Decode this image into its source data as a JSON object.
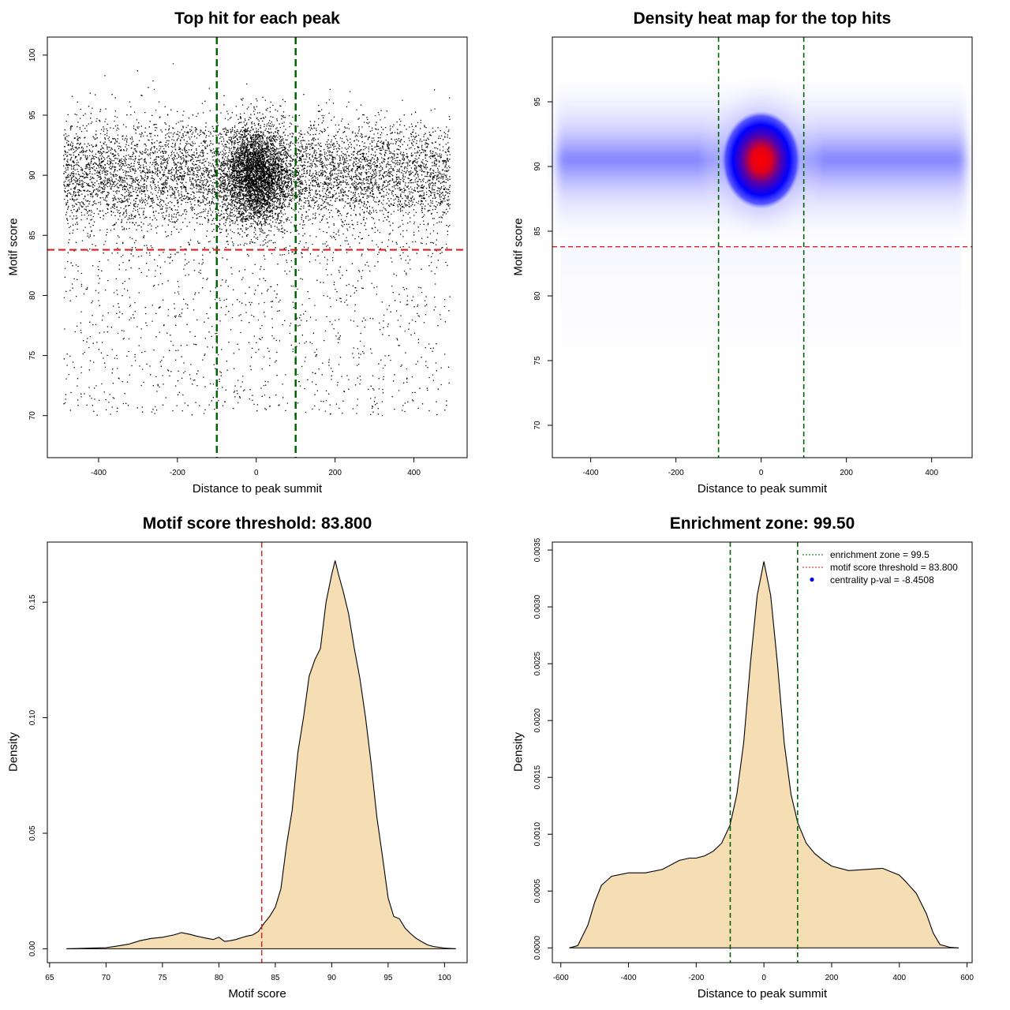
{
  "chart_data": [
    {
      "type": "scatter",
      "title": "Top hit for each peak",
      "xlabel": "Distance to peak summit",
      "ylabel": "Motif score",
      "xlim": [
        -530,
        535
      ],
      "ylim": [
        66.5,
        101.5
      ],
      "xticks": [
        -400,
        -200,
        0,
        200,
        400
      ],
      "yticks": [
        70,
        75,
        80,
        85,
        90,
        95,
        100
      ],
      "x_range": [
        -490,
        490
      ],
      "core_center": [
        0,
        90
      ],
      "vlines": [
        -100,
        100
      ],
      "hline": 83.8,
      "point_count_approx": 11000,
      "points_color": "#000000"
    },
    {
      "type": "heatmap",
      "title": "Density heat map for the top hits",
      "xlabel": "Distance to peak summit",
      "ylabel": "Motif score",
      "xlim": [
        -490,
        495
      ],
      "ylim": [
        67.5,
        100
      ],
      "xticks": [
        -400,
        -200,
        0,
        200,
        400
      ],
      "yticks": [
        70,
        75,
        80,
        85,
        90,
        95
      ],
      "peak": [
        0,
        90.5
      ],
      "vlines": [
        -100,
        100
      ],
      "hline": 83.8,
      "colors": [
        "#ffffff",
        "#8080ff",
        "#0000ff",
        "#ff0000"
      ]
    },
    {
      "type": "area",
      "title": "Motif score threshold: 83.800",
      "xlabel": "Motif score",
      "ylabel": "Density",
      "xlim": [
        64.8,
        102
      ],
      "ylim": [
        -0.006,
        0.176
      ],
      "xticks": [
        65,
        70,
        75,
        80,
        85,
        90,
        95,
        100
      ],
      "yticks": [
        0.0,
        0.05,
        0.1,
        0.15
      ],
      "ytick_labels": [
        "0.00",
        "0.05",
        "0.10",
        "0.15"
      ],
      "vline": 83.8,
      "fill": "#f5deb3",
      "x": [
        66.5,
        68,
        70,
        71,
        72,
        73,
        74,
        75,
        76,
        76.7,
        77.5,
        78,
        79,
        79.5,
        80,
        80.5,
        81,
        81.5,
        82,
        82.5,
        83,
        83.5,
        84,
        84.5,
        85,
        85.5,
        86,
        86.5,
        87,
        87.5,
        88,
        88.5,
        89,
        89.5,
        90,
        90.3,
        90.6,
        91,
        91.5,
        92,
        92.5,
        93,
        93.5,
        94,
        94.5,
        95,
        95.5,
        96,
        96.5,
        97,
        97.5,
        98,
        98.5,
        99,
        100,
        101
      ],
      "y": [
        0.0,
        0.0002,
        0.0005,
        0.0012,
        0.002,
        0.0035,
        0.0045,
        0.005,
        0.006,
        0.007,
        0.0062,
        0.0055,
        0.0045,
        0.004,
        0.005,
        0.0032,
        0.0035,
        0.004,
        0.0048,
        0.0055,
        0.006,
        0.0075,
        0.011,
        0.014,
        0.018,
        0.026,
        0.045,
        0.06,
        0.085,
        0.1,
        0.118,
        0.125,
        0.13,
        0.15,
        0.162,
        0.168,
        0.162,
        0.155,
        0.145,
        0.13,
        0.117,
        0.1,
        0.08,
        0.057,
        0.04,
        0.022,
        0.014,
        0.013,
        0.009,
        0.0065,
        0.0045,
        0.003,
        0.0017,
        0.001,
        0.0003,
        0.0
      ]
    },
    {
      "type": "area",
      "title": "Enrichment zone: 99.50",
      "xlabel": "Distance to peak summit",
      "ylabel": "Density",
      "xlim": [
        -625,
        615
      ],
      "ylim": [
        -0.00013,
        0.00357
      ],
      "xticks": [
        -600,
        -400,
        -200,
        0,
        200,
        400,
        600
      ],
      "yticks": [
        0.0,
        0.0005,
        0.001,
        0.0015,
        0.002,
        0.0025,
        0.003,
        0.0035
      ],
      "ytick_labels": [
        "0.0000",
        "0.0005",
        "0.0010",
        "0.0015",
        "0.0020",
        "0.0025",
        "0.0030",
        "0.0035"
      ],
      "vlines": [
        -99.5,
        99.5
      ],
      "fill": "#f5deb3",
      "x": [
        -575,
        -550,
        -520,
        -500,
        -480,
        -450,
        -400,
        -350,
        -300,
        -250,
        -220,
        -200,
        -175,
        -150,
        -125,
        -100,
        -80,
        -60,
        -40,
        -20,
        0,
        20,
        40,
        60,
        80,
        100,
        125,
        150,
        175,
        200,
        250,
        300,
        350,
        400,
        420,
        450,
        480,
        500,
        520,
        550,
        575
      ],
      "y": [
        0.0,
        2e-05,
        0.0002,
        0.0004,
        0.00055,
        0.00063,
        0.00066,
        0.00066,
        0.00069,
        0.00077,
        0.00079,
        0.00079,
        0.00081,
        0.00085,
        0.00092,
        0.00108,
        0.00135,
        0.0018,
        0.0025,
        0.0031,
        0.0034,
        0.0031,
        0.0025,
        0.0018,
        0.00135,
        0.0011,
        0.00092,
        0.00083,
        0.00077,
        0.00072,
        0.00068,
        0.00069,
        0.0007,
        0.00064,
        0.00058,
        0.00048,
        0.0003,
        0.00013,
        3e-05,
        5e-06,
        0.0
      ],
      "legend": {
        "placement": "top-right",
        "entries": [
          {
            "label": "enrichment zone = 99.5",
            "color": "#006400",
            "style": "dotted-line"
          },
          {
            "label": "motif score threshold = 83.800",
            "color": "#ff0000",
            "style": "dotted-line"
          },
          {
            "label": "centrality p-val = -8.4508",
            "color": "#0000ff",
            "style": "point"
          }
        ]
      }
    }
  ],
  "colors": {
    "green_line": "#006400",
    "red_line": "#dc1e1e",
    "fill": "#f5deb3"
  }
}
